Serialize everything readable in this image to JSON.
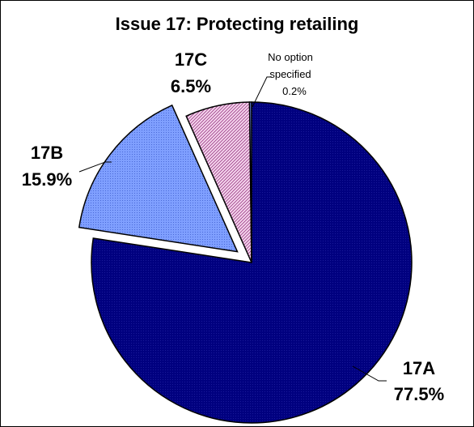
{
  "chart_data": {
    "type": "pie",
    "title": "Issue 17: Protecting retailing",
    "slices": [
      {
        "label": "17A",
        "value": 77.5,
        "value_label": "77.5%",
        "color": "#00007f",
        "pattern": "dots",
        "exploded": false
      },
      {
        "label": "17B",
        "value": 15.9,
        "value_label": "15.9%",
        "color": "#7f9fff",
        "pattern": "dots",
        "exploded": true
      },
      {
        "label": "17C",
        "value": 6.5,
        "value_label": "6.5%",
        "color": "#f2c6e6",
        "pattern": "diagonal",
        "exploded": false
      },
      {
        "label": "No option specified",
        "label_lines": [
          "No option",
          "specified"
        ],
        "value": 0.2,
        "value_label": "0.2%",
        "color": "#7f9fff",
        "pattern": "dots",
        "exploded": false
      }
    ],
    "legend": "none"
  }
}
